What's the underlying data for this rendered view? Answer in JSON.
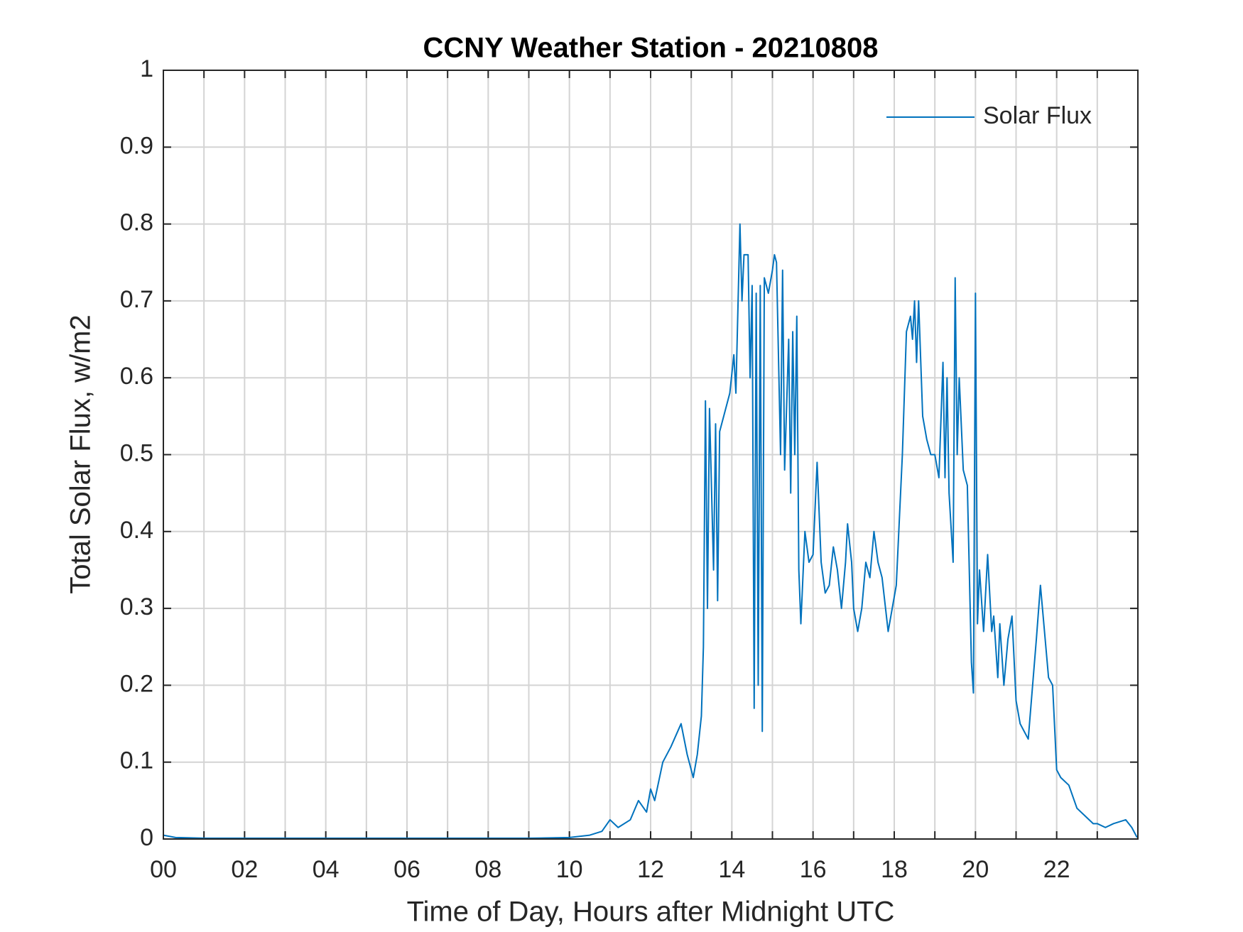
{
  "chart_data": {
    "type": "line",
    "title": "CCNY Weather Station - 20210808",
    "xlabel": "Time of Day, Hours after Midnight UTC",
    "ylabel": "Total Solar Flux, w/m2",
    "x": [
      0,
      0.3,
      1,
      9,
      10,
      10.5,
      10.8,
      11,
      11.2,
      11.5,
      11.7,
      11.9,
      12,
      12.1,
      12.3,
      12.5,
      12.75,
      12.9,
      13.05,
      13.15,
      13.25,
      13.3,
      13.35,
      13.4,
      13.45,
      13.55,
      13.6,
      13.65,
      13.7,
      13.8,
      13.95,
      14.05,
      14.1,
      14.2,
      14.25,
      14.3,
      14.4,
      14.45,
      14.5,
      14.55,
      14.6,
      14.65,
      14.7,
      14.75,
      14.8,
      14.9,
      15,
      15.05,
      15.1,
      15.2,
      15.25,
      15.3,
      15.4,
      15.45,
      15.5,
      15.55,
      15.6,
      15.65,
      15.7,
      15.8,
      15.9,
      16,
      16.1,
      16.2,
      16.3,
      16.4,
      16.5,
      16.6,
      16.7,
      16.8,
      16.85,
      16.95,
      17,
      17.1,
      17.2,
      17.3,
      17.4,
      17.5,
      17.6,
      17.7,
      17.85,
      17.95,
      18.05,
      18.2,
      18.3,
      18.4,
      18.45,
      18.5,
      18.55,
      18.6,
      18.7,
      18.8,
      18.9,
      19,
      19.1,
      19.2,
      19.25,
      19.3,
      19.35,
      19.45,
      19.5,
      19.55,
      19.6,
      19.7,
      19.8,
      19.9,
      19.95,
      20,
      20.05,
      20.1,
      20.2,
      20.3,
      20.4,
      20.45,
      20.55,
      20.6,
      20.7,
      20.8,
      20.9,
      21,
      21.1,
      21.2,
      21.3,
      21.5,
      21.6,
      21.7,
      21.8,
      21.9,
      22,
      22.1,
      22.3,
      22.5,
      22.7,
      22.9,
      23,
      23.2,
      23.4,
      23.7,
      23.85,
      23.98
    ],
    "series": [
      {
        "name": "Solar Flux",
        "color": "#0072bd",
        "values": [
          0.005,
          0.002,
          0.001,
          0.001,
          0.002,
          0.005,
          0.01,
          0.025,
          0.015,
          0.025,
          0.05,
          0.035,
          0.065,
          0.05,
          0.1,
          0.12,
          0.15,
          0.11,
          0.08,
          0.11,
          0.16,
          0.25,
          0.57,
          0.3,
          0.56,
          0.35,
          0.54,
          0.31,
          0.53,
          0.55,
          0.58,
          0.63,
          0.58,
          0.8,
          0.7,
          0.76,
          0.76,
          0.6,
          0.72,
          0.17,
          0.71,
          0.2,
          0.72,
          0.14,
          0.73,
          0.71,
          0.74,
          0.76,
          0.75,
          0.5,
          0.74,
          0.48,
          0.65,
          0.45,
          0.66,
          0.5,
          0.68,
          0.35,
          0.28,
          0.4,
          0.36,
          0.37,
          0.49,
          0.36,
          0.32,
          0.33,
          0.38,
          0.35,
          0.3,
          0.36,
          0.41,
          0.36,
          0.3,
          0.27,
          0.3,
          0.36,
          0.34,
          0.4,
          0.36,
          0.34,
          0.27,
          0.3,
          0.33,
          0.5,
          0.66,
          0.68,
          0.65,
          0.7,
          0.62,
          0.7,
          0.55,
          0.52,
          0.5,
          0.5,
          0.47,
          0.62,
          0.47,
          0.6,
          0.45,
          0.36,
          0.73,
          0.5,
          0.6,
          0.48,
          0.46,
          0.23,
          0.19,
          0.71,
          0.28,
          0.35,
          0.27,
          0.37,
          0.27,
          0.29,
          0.21,
          0.28,
          0.2,
          0.26,
          0.29,
          0.18,
          0.15,
          0.14,
          0.13,
          0.26,
          0.33,
          0.27,
          0.21,
          0.2,
          0.09,
          0.08,
          0.07,
          0.04,
          0.03,
          0.02,
          0.02,
          0.015,
          0.02,
          0.025,
          0.015,
          0.002
        ]
      }
    ],
    "xlim": [
      0,
      24
    ],
    "xticks": [
      {
        "value": 0,
        "label": "00"
      },
      {
        "value": 2,
        "label": "02"
      },
      {
        "value": 4,
        "label": "04"
      },
      {
        "value": 6,
        "label": "06"
      },
      {
        "value": 8,
        "label": "08"
      },
      {
        "value": 10,
        "label": "10"
      },
      {
        "value": 12,
        "label": "12"
      },
      {
        "value": 14,
        "label": "14"
      },
      {
        "value": 16,
        "label": "16"
      },
      {
        "value": 18,
        "label": "18"
      },
      {
        "value": 20,
        "label": "20"
      },
      {
        "value": 22,
        "label": "22"
      }
    ],
    "xminorticks": [
      1,
      3,
      5,
      7,
      9,
      11,
      13,
      15,
      17,
      19,
      21,
      23
    ],
    "ylim": [
      0,
      1
    ],
    "yticks": [
      0,
      0.1,
      0.2,
      0.3,
      0.4,
      0.5,
      0.6,
      0.7,
      0.8,
      0.9,
      1
    ],
    "grid": true,
    "legend": "northeast"
  }
}
